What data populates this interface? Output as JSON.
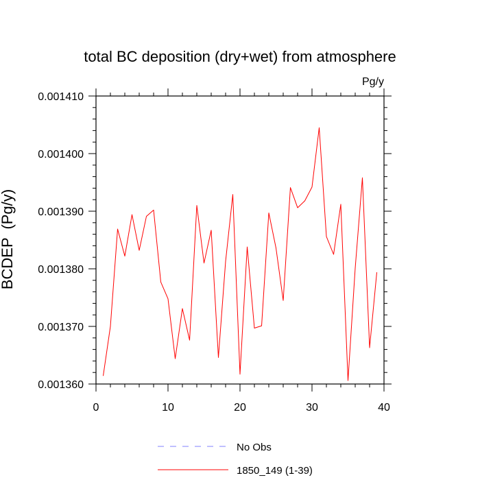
{
  "chart_data": {
    "type": "line",
    "title": "total BC deposition (dry+wet) from atmosphere",
    "units_label": "Pg/y",
    "ylabel": "BCDEP  (Pg/y)",
    "xlabel": "",
    "xlim": [
      0,
      40
    ],
    "ylim": [
      0.00136,
      0.00141
    ],
    "x_ticks": [
      0,
      10,
      20,
      30,
      40
    ],
    "x_tick_labels": [
      "0",
      "10",
      "20",
      "30",
      "40"
    ],
    "y_ticks": [
      0.00136,
      0.00137,
      0.00138,
      0.00139,
      0.0014,
      0.00141
    ],
    "y_tick_labels": [
      "0.001360",
      "0.001370",
      "0.001380",
      "0.001390",
      "0.001400",
      "0.001410"
    ],
    "grid": false,
    "legend_position": "bottom-center",
    "series": [
      {
        "name": "1850_149 (1-39)",
        "color": "#ff0000",
        "style": "solid",
        "x": [
          1,
          2,
          3,
          4,
          5,
          6,
          7,
          8,
          9,
          10,
          11,
          12,
          13,
          14,
          15,
          16,
          17,
          18,
          19,
          20,
          21,
          22,
          23,
          24,
          25,
          26,
          27,
          28,
          29,
          30,
          31,
          32,
          33,
          34,
          35,
          36,
          37,
          38,
          39
        ],
        "y": [
          0.0013614,
          0.00137,
          0.0013869,
          0.0013822,
          0.0013894,
          0.0013832,
          0.0013891,
          0.0013902,
          0.0013777,
          0.0013748,
          0.0013644,
          0.0013731,
          0.0013676,
          0.001391,
          0.001381,
          0.0013867,
          0.0013646,
          0.0013813,
          0.0013929,
          0.0013617,
          0.0013838,
          0.0013697,
          0.0013701,
          0.0013897,
          0.0013836,
          0.0013745,
          0.0013941,
          0.0013906,
          0.0013918,
          0.0013942,
          0.0014045,
          0.0013856,
          0.0013825,
          0.0013912,
          0.0013606,
          0.0013801,
          0.0013958,
          0.0013663,
          0.0013794
        ]
      }
    ],
    "legend": [
      {
        "label": "No Obs",
        "color": "#8080ff",
        "style": "dashed"
      },
      {
        "label": "1850_149 (1-39)",
        "color": "#ff0000",
        "style": "solid"
      }
    ]
  }
}
